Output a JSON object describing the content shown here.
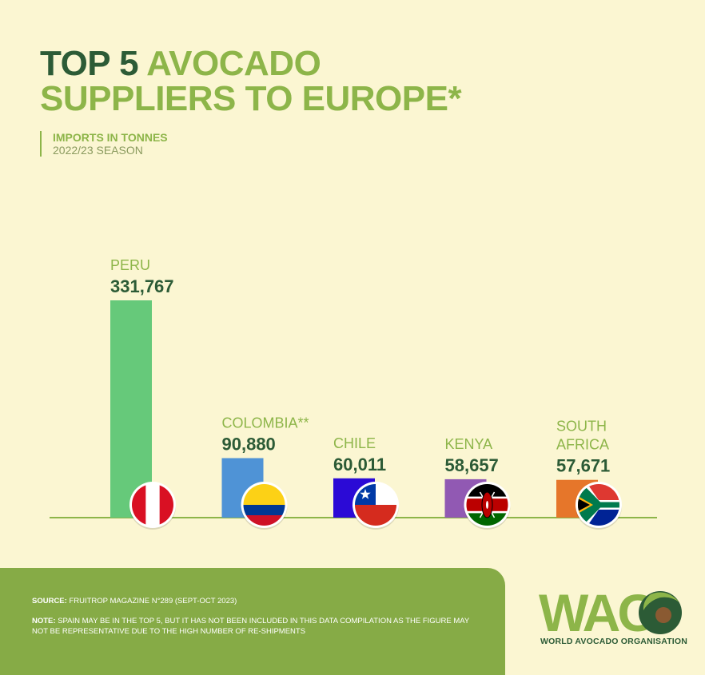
{
  "header": {
    "title_part1": "TOP 5",
    "title_part2": "AVOCADO",
    "title_line2": "SUPPLIERS TO EUROPE*",
    "subtitle_line1": "IMPORTS IN TONNES",
    "subtitle_line2": "2022/23 SEASON"
  },
  "chart_data": {
    "type": "bar",
    "categories": [
      "PERU",
      "COLOMBIA**",
      "CHILE",
      "KENYA",
      "SOUTH AFRICA"
    ],
    "category_lines": [
      [
        "PERU"
      ],
      [
        "COLOMBIA**"
      ],
      [
        "CHILE"
      ],
      [
        "KENYA"
      ],
      [
        "SOUTH",
        "AFRICA"
      ]
    ],
    "values": [
      331767,
      90880,
      60011,
      58657,
      57671
    ],
    "value_labels": [
      "331,767",
      "90,880",
      "60,011",
      "58,657",
      "57,671"
    ],
    "bar_colors": [
      "#66c97a",
      "#4f93d6",
      "#2b0ad6",
      "#9159b3",
      "#e6762a"
    ],
    "flags": [
      "peru-flag-icon",
      "colombia-flag-icon",
      "chile-flag-icon",
      "kenya-flag-icon",
      "south-africa-flag-icon"
    ],
    "grid": false
  },
  "footer": {
    "source_label": "SOURCE:",
    "source_text": " FRUITROP MAGAZINE N°289 (SEPT-OCT 2023)",
    "note_label": "NOTE:",
    "note_text": " SPAIN MAY BE IN THE TOP 5, BUT IT HAS NOT BEEN INCLUDED IN THIS DATA COMPILATION AS THE FIGURE MAY NOT BE REPRESENTATIVE DUE TO THE HIGH NUMBER OF RE-SHIPMENTS"
  },
  "logo": {
    "letters": "WAO",
    "name": "WORLD AVOCADO ORGANISATION"
  },
  "colors": {
    "background": "#fbf6d2",
    "dark_green": "#2c5b36",
    "light_green": "#8db549",
    "footer_green": "#86ab46"
  }
}
